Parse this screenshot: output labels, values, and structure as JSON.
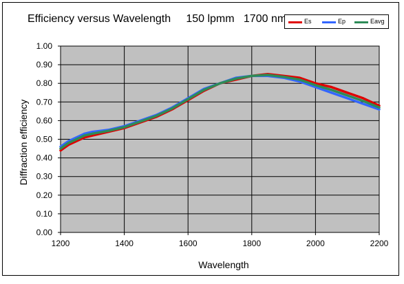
{
  "chart_data": {
    "type": "line",
    "title": "Efficiency versus Wavelength     150 lpmm   1700 nm",
    "xlabel": "Wavelength",
    "ylabel": "Diffraction efficiency",
    "xlim": [
      1200,
      2200
    ],
    "ylim": [
      0.0,
      1.0
    ],
    "x_ticks": [
      "1200",
      "1400",
      "1600",
      "1800",
      "2000",
      "2200"
    ],
    "y_ticks": [
      "0.00",
      "0.10",
      "0.20",
      "0.30",
      "0.40",
      "0.50",
      "0.60",
      "0.70",
      "0.80",
      "0.90",
      "1.00"
    ],
    "grid": true,
    "plot_background": "#c0c0c0",
    "legend_position": "top-right",
    "series": [
      {
        "name": "Es",
        "color": "#e00000",
        "x": [
          1200,
          1225,
          1250,
          1275,
          1300,
          1350,
          1400,
          1450,
          1500,
          1550,
          1600,
          1650,
          1700,
          1750,
          1800,
          1850,
          1900,
          1950,
          2000,
          2050,
          2100,
          2150,
          2200
        ],
        "y": [
          0.44,
          0.47,
          0.49,
          0.51,
          0.52,
          0.54,
          0.56,
          0.59,
          0.62,
          0.66,
          0.71,
          0.76,
          0.8,
          0.82,
          0.84,
          0.85,
          0.84,
          0.83,
          0.8,
          0.78,
          0.75,
          0.72,
          0.68
        ]
      },
      {
        "name": "Ep",
        "color": "#3366ff",
        "x": [
          1200,
          1225,
          1250,
          1275,
          1300,
          1350,
          1400,
          1450,
          1500,
          1550,
          1600,
          1650,
          1700,
          1750,
          1800,
          1850,
          1900,
          1950,
          2000,
          2050,
          2100,
          2150,
          2200
        ],
        "y": [
          0.46,
          0.49,
          0.51,
          0.53,
          0.54,
          0.55,
          0.57,
          0.6,
          0.63,
          0.67,
          0.72,
          0.77,
          0.8,
          0.83,
          0.84,
          0.84,
          0.83,
          0.81,
          0.78,
          0.75,
          0.72,
          0.69,
          0.66
        ]
      },
      {
        "name": "Eavg",
        "color": "#2e8b57",
        "x": [
          1200,
          1225,
          1250,
          1275,
          1300,
          1350,
          1400,
          1450,
          1500,
          1550,
          1600,
          1650,
          1700,
          1750,
          1800,
          1850,
          1900,
          1950,
          2000,
          2050,
          2100,
          2150,
          2200
        ],
        "y": [
          0.45,
          0.48,
          0.5,
          0.52,
          0.53,
          0.545,
          0.565,
          0.595,
          0.625,
          0.665,
          0.715,
          0.765,
          0.8,
          0.825,
          0.84,
          0.845,
          0.835,
          0.82,
          0.79,
          0.765,
          0.735,
          0.705,
          0.67
        ]
      }
    ]
  }
}
